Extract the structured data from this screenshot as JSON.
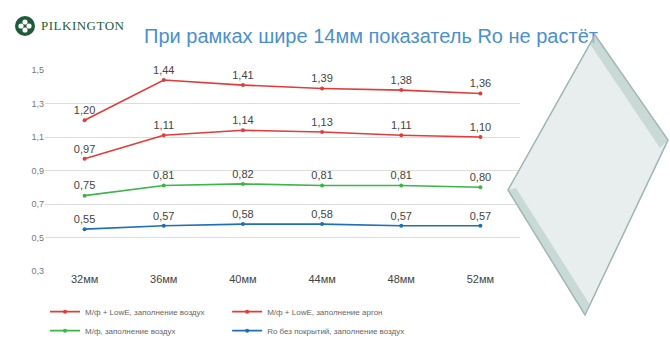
{
  "chart_data": {
    "type": "line",
    "title": "При рамках шире 14мм показатель Ro не растёт",
    "annotations": [
      {
        "text": "PILKINGTON"
      }
    ],
    "categories": [
      "32мм",
      "36мм",
      "40мм",
      "44мм",
      "48мм",
      "52мм"
    ],
    "series": [
      {
        "name": "М/ф + LowE, заполнение воздух",
        "color": "#e23b3b",
        "values": [
          1.2,
          1.44,
          1.41,
          1.39,
          1.38,
          1.36
        ],
        "value_labels": [
          "1,20",
          "1,44",
          "1,41",
          "1,39",
          "1,38",
          "1,36"
        ]
      },
      {
        "name": "М/ф + LowE, заполнение аргон",
        "color": "#e23b3b",
        "values": [
          0.97,
          1.11,
          1.14,
          1.13,
          1.11,
          1.1
        ],
        "value_labels": [
          "0,97",
          "1,11",
          "1,14",
          "1,13",
          "1,11",
          "1,10"
        ]
      },
      {
        "name": "М/ф, заполнение воздух",
        "color": "#3cb54a",
        "values": [
          0.75,
          0.81,
          0.82,
          0.81,
          0.81,
          0.8
        ],
        "value_labels": [
          "0,75",
          "0,81",
          "0,82",
          "0,81",
          "0,81",
          "0,80"
        ]
      },
      {
        "name": "Ro без покрытий, заполнение воздух",
        "color": "#1f6fb5",
        "values": [
          0.55,
          0.57,
          0.58,
          0.58,
          0.57,
          0.57
        ],
        "value_labels": [
          "0,55",
          "0,57",
          "0,58",
          "0,58",
          "0,57",
          "0,57"
        ]
      }
    ],
    "ylim": [
      0.3,
      1.5
    ],
    "yticks": [
      {
        "value": 0.3,
        "label": "0,3"
      },
      {
        "value": 0.5,
        "label": "0,5"
      },
      {
        "value": 0.7,
        "label": "0,7"
      },
      {
        "value": 0.9,
        "label": "0,9"
      },
      {
        "value": 1.1,
        "label": "1,1"
      },
      {
        "value": 1.3,
        "label": "1,3"
      },
      {
        "value": 1.5,
        "label": "1,5"
      }
    ],
    "grid": true,
    "legend": "bottom",
    "data_labels": true,
    "marker": "circle"
  }
}
